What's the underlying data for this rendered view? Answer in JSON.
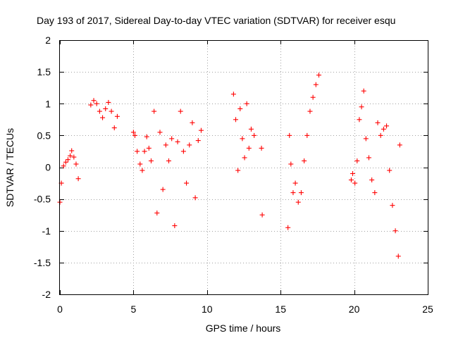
{
  "chart_data": {
    "type": "scatter",
    "title": "Day 193 of 2017, Sidereal Day-to-day VTEC variation (SDTVAR) for receiver esqu",
    "xlabel": "GPS time / hours",
    "ylabel": "SDTVAR / TECUs",
    "xlim": [
      0,
      25
    ],
    "ylim": [
      -2,
      2
    ],
    "grid": true,
    "marker": "plus",
    "color": "#ff0000",
    "x_ticks": [
      0,
      5,
      10,
      15,
      20,
      25
    ],
    "x_tick_labels": [
      "0",
      "5",
      "10",
      "15",
      "20",
      "25"
    ],
    "y_ticks": [
      -2,
      -1.5,
      -1,
      -0.5,
      0,
      0.5,
      1,
      1.5,
      2
    ],
    "y_tick_labels": [
      "-2",
      "-1.5",
      "-1",
      "-0.5",
      "0",
      "0.5",
      "1",
      "1.5",
      "2"
    ],
    "series": [
      {
        "name": "SDTVAR",
        "segments": [
          {
            "x": [
              0.0,
              0.1,
              0.25,
              0.4,
              0.55,
              0.7,
              0.8,
              0.95,
              1.1,
              1.25
            ],
            "y": [
              -0.55,
              -0.25,
              0.02,
              0.08,
              0.12,
              0.18,
              0.26,
              0.16,
              0.05,
              -0.18
            ]
          },
          {
            "x": [
              2.1,
              2.3,
              2.5,
              2.7,
              2.9,
              3.1,
              3.3,
              3.5,
              3.7,
              3.9
            ],
            "y": [
              0.98,
              1.05,
              1.0,
              0.88,
              0.78,
              0.92,
              1.02,
              0.88,
              0.62,
              0.8
            ]
          },
          {
            "x": [
              5.0,
              5.1,
              5.25,
              5.45,
              5.6,
              5.75,
              5.9,
              6.05,
              6.2
            ],
            "y": [
              0.55,
              0.5,
              0.25,
              0.05,
              -0.05,
              0.25,
              0.48,
              0.3,
              0.1
            ]
          },
          {
            "x": [
              6.4,
              6.6,
              6.8,
              7.0,
              7.2,
              7.4,
              7.6,
              7.8,
              8.0,
              8.2,
              8.4,
              8.6,
              8.8,
              9.0,
              9.2,
              9.4,
              9.6
            ],
            "y": [
              0.88,
              -0.72,
              0.55,
              -0.35,
              0.35,
              0.1,
              0.45,
              -0.92,
              0.4,
              0.88,
              0.25,
              -0.25,
              0.35,
              0.7,
              -0.48,
              0.42,
              0.58
            ]
          },
          {
            "x": [
              11.8,
              11.95,
              12.1,
              12.25,
              12.4,
              12.55,
              12.7,
              12.85,
              13.0,
              13.2,
              13.7,
              13.75
            ],
            "y": [
              1.15,
              0.75,
              -0.05,
              0.92,
              0.45,
              0.15,
              1.0,
              0.3,
              0.6,
              0.5,
              0.3,
              -0.75
            ]
          },
          {
            "x": [
              15.5,
              15.6,
              15.7,
              15.85,
              16.0,
              16.2,
              16.4,
              16.6,
              16.8,
              17.0,
              17.2,
              17.4,
              17.6
            ],
            "y": [
              -0.95,
              0.5,
              0.05,
              -0.4,
              -0.25,
              -0.55,
              -0.4,
              0.1,
              0.5,
              0.88,
              1.1,
              1.3,
              1.45
            ]
          },
          {
            "x": [
              19.8,
              19.9,
              20.05,
              20.2,
              20.35,
              20.5,
              20.65,
              20.8,
              21.0,
              21.2,
              21.4,
              21.6,
              21.8,
              22.0,
              22.2,
              22.4,
              22.6,
              22.8,
              23.0,
              23.1
            ],
            "y": [
              -0.2,
              -0.1,
              -0.25,
              0.1,
              0.75,
              0.95,
              1.2,
              0.45,
              0.15,
              -0.2,
              -0.4,
              0.7,
              0.5,
              0.6,
              0.65,
              -0.05,
              -0.6,
              -1.0,
              -1.4,
              0.35
            ]
          }
        ]
      }
    ]
  }
}
